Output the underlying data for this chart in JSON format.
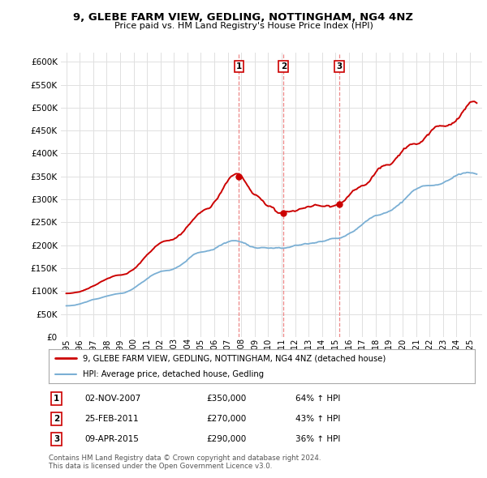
{
  "title": "9, GLEBE FARM VIEW, GEDLING, NOTTINGHAM, NG4 4NZ",
  "subtitle": "Price paid vs. HM Land Registry's House Price Index (HPI)",
  "ylim": [
    0,
    620000
  ],
  "yticks": [
    0,
    50000,
    100000,
    150000,
    200000,
    250000,
    300000,
    350000,
    400000,
    450000,
    500000,
    550000,
    600000
  ],
  "ytick_labels": [
    "£0",
    "£50K",
    "£100K",
    "£150K",
    "£200K",
    "£250K",
    "£300K",
    "£350K",
    "£400K",
    "£450K",
    "£500K",
    "£550K",
    "£600K"
  ],
  "sale_year_floats": [
    2007.836,
    2011.146,
    2015.274
  ],
  "sale_prices": [
    350000,
    270000,
    290000
  ],
  "sale_labels": [
    "1",
    "2",
    "3"
  ],
  "sale_date_strs": [
    "02-NOV-2007",
    "25-FEB-2011",
    "09-APR-2015"
  ],
  "sale_price_strs": [
    "£350,000",
    "£270,000",
    "£290,000"
  ],
  "sale_hpi_strs": [
    "64% ↑ HPI",
    "43% ↑ HPI",
    "36% ↑ HPI"
  ],
  "legend_label_red": "9, GLEBE FARM VIEW, GEDLING, NOTTINGHAM, NG4 4NZ (detached house)",
  "legend_label_blue": "HPI: Average price, detached house, Gedling",
  "footer_line1": "Contains HM Land Registry data © Crown copyright and database right 2024.",
  "footer_line2": "This data is licensed under the Open Government Licence v3.0.",
  "red_color": "#cc0000",
  "blue_color": "#7aafd4",
  "bg_color": "#ffffff",
  "grid_color": "#e0e0e0",
  "xlim_min": 1994.6,
  "xlim_max": 2025.9
}
